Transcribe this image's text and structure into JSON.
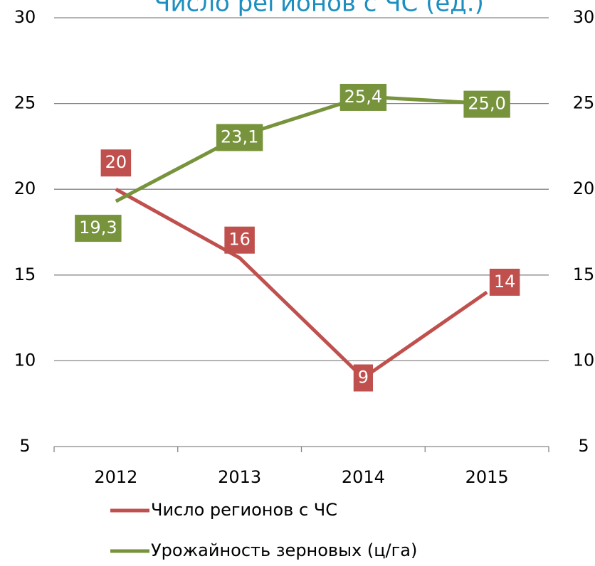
{
  "chart_data": {
    "type": "line",
    "title": "Число регионов с ЧС (ед.)",
    "categories": [
      "2012",
      "2013",
      "2014",
      "2015"
    ],
    "series": [
      {
        "name": "Число регионов с ЧС",
        "color": "#c0504d",
        "values": [
          20,
          16,
          9,
          14
        ]
      },
      {
        "name": "Урожайность зерновых (ц/га)",
        "color": "#77933c",
        "axis": "y2",
        "values": [
          19.3,
          23.1,
          25.4,
          25.0
        ],
        "value_labels": [
          "19,3",
          "23,1",
          "25,4",
          "25,0"
        ]
      }
    ],
    "ylim": [
      5,
      30
    ],
    "yticks": [
      5,
      10,
      15,
      20,
      25,
      30
    ],
    "y2lim": [
      5,
      30
    ],
    "y2ticks": [
      5,
      10,
      15,
      20,
      25,
      30
    ],
    "grid": true,
    "legend": "bottom"
  }
}
